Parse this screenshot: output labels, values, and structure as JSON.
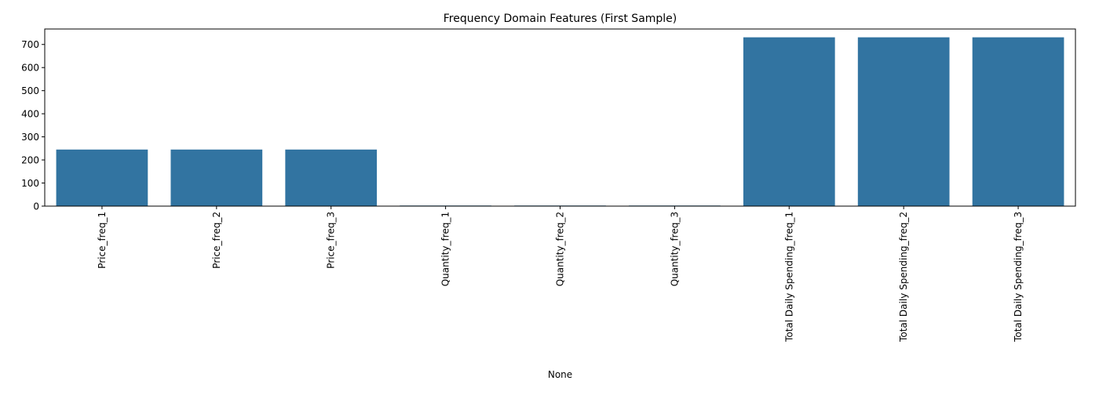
{
  "chart_data": {
    "type": "bar",
    "title": "Frequency Domain Features (First Sample)",
    "xlabel": "None",
    "ylabel": "",
    "categories": [
      "Price_freq_1",
      "Price_freq_2",
      "Price_freq_3",
      "Quantity_freq_1",
      "Quantity_freq_2",
      "Quantity_freq_3",
      "Total Daily Spending_freq_1",
      "Total Daily Spending_freq_2",
      "Total Daily Spending_freq_3"
    ],
    "values": [
      245,
      245,
      245,
      2.5,
      2.5,
      2.5,
      731,
      731,
      731
    ],
    "ylim": [
      0,
      767
    ],
    "yticks": [
      0,
      100,
      200,
      300,
      400,
      500,
      600,
      700
    ],
    "grid": false,
    "legend": "none",
    "bar_color": "#3274a1"
  }
}
